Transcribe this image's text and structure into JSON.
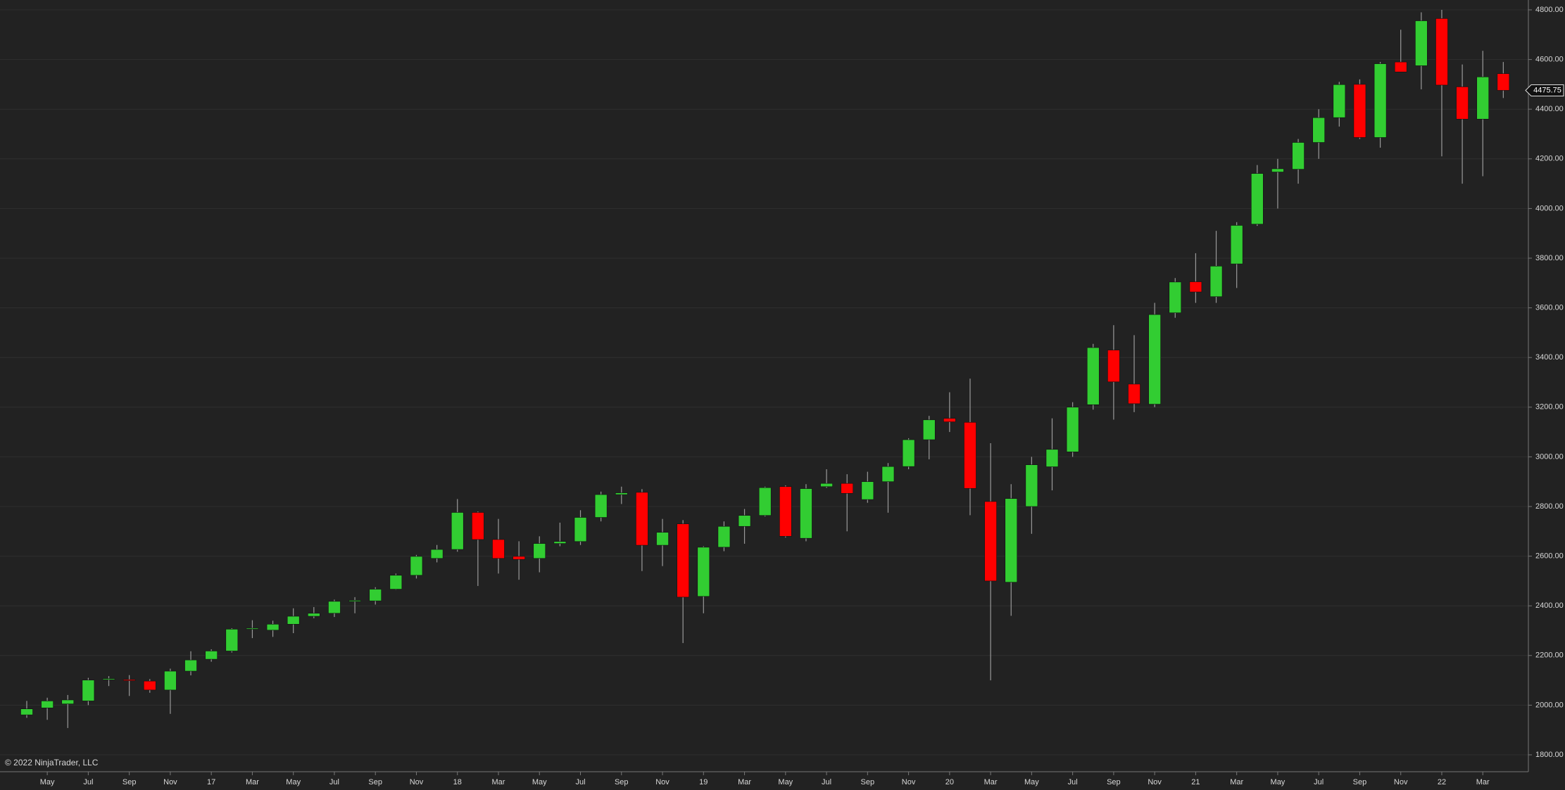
{
  "chart_data": {
    "type": "candlestick",
    "copyright": "© 2022 NinjaTrader, LLC",
    "categories": [
      null,
      "May",
      null,
      "Jul",
      null,
      "Sep",
      null,
      "Nov",
      null,
      "17",
      null,
      "Mar",
      null,
      "May",
      null,
      "Jul",
      null,
      "Sep",
      null,
      "Nov",
      null,
      "18",
      null,
      "Mar",
      null,
      "May",
      null,
      "Jul",
      null,
      "Sep",
      null,
      "Nov",
      null,
      "19",
      null,
      "Mar",
      null,
      "May",
      null,
      "Jul",
      null,
      "Sep",
      null,
      "Nov",
      null,
      "20",
      null,
      "Mar",
      null,
      "May",
      null,
      "Jul",
      null,
      "Sep",
      null,
      "Nov",
      null,
      "21",
      null,
      "Mar",
      null,
      "May",
      null,
      "Jul",
      null,
      "Sep",
      null,
      "Nov",
      null,
      "22",
      null,
      "Mar",
      null
    ],
    "open": [
      1961,
      1989,
      2005,
      2017,
      2103,
      2103,
      2097,
      2061,
      2137,
      2185,
      2218,
      2306,
      2302,
      2326,
      2358,
      2370,
      2418,
      2420,
      2467,
      2523,
      2591,
      2627,
      2776,
      2667,
      2599,
      2591,
      2651,
      2659,
      2756,
      2848,
      2857,
      2644,
      2730,
      2438,
      2636,
      2720,
      2764,
      2880,
      2672,
      2880,
      2893,
      2828,
      2900,
      2961,
      3069,
      3155,
      3139,
      2820,
      2495,
      2800,
      2960,
      3020,
      3210,
      3430,
      3293,
      3212,
      3580,
      3705,
      3645,
      3777,
      3937,
      4147,
      4158,
      4266,
      4366,
      4500,
      4286,
      4590,
      4575,
      4765,
      4490,
      4360,
      4543
    ],
    "high": [
      2017,
      2030,
      2041,
      2110,
      2117,
      2121,
      2105,
      2147,
      2217,
      2225,
      2310,
      2342,
      2340,
      2390,
      2395,
      2425,
      2435,
      2475,
      2530,
      2605,
      2645,
      2830,
      2780,
      2750,
      2660,
      2680,
      2735,
      2785,
      2860,
      2880,
      2870,
      2750,
      2745,
      2640,
      2740,
      2790,
      2880,
      2885,
      2890,
      2950,
      2930,
      2940,
      2975,
      3075,
      3165,
      3260,
      3315,
      3055,
      2890,
      3000,
      3155,
      3220,
      3455,
      3530,
      3490,
      3620,
      3720,
      3820,
      3910,
      3945,
      4175,
      4200,
      4280,
      4400,
      4510,
      4520,
      4590,
      4720,
      4790,
      4800,
      4580,
      4635,
      4590
    ],
    "low": [
      1949,
      1941,
      1908,
      2000,
      2077,
      2037,
      2050,
      1965,
      2120,
      2175,
      2212,
      2270,
      2275,
      2290,
      2350,
      2355,
      2370,
      2405,
      2465,
      2510,
      2575,
      2618,
      2480,
      2530,
      2505,
      2535,
      2640,
      2645,
      2740,
      2810,
      2540,
      2560,
      2250,
      2370,
      2620,
      2650,
      2760,
      2675,
      2660,
      2875,
      2700,
      2815,
      2775,
      2950,
      2990,
      3100,
      2765,
      2100,
      2360,
      2690,
      2865,
      3000,
      3190,
      3150,
      3180,
      3200,
      3560,
      3620,
      3620,
      3680,
      3930,
      4000,
      4100,
      4200,
      4330,
      4280,
      4245,
      4550,
      4480,
      4210,
      4100,
      4130,
      4445
    ],
    "close": [
      1985,
      2017,
      2021,
      2101,
      2107,
      2099,
      2061,
      2137,
      2182,
      2218,
      2306,
      2310,
      2326,
      2358,
      2370,
      2418,
      2422,
      2467,
      2523,
      2599,
      2627,
      2776,
      2667,
      2591,
      2587,
      2651,
      2659,
      2756,
      2848,
      2855,
      2644,
      2696,
      2435,
      2636,
      2720,
      2764,
      2876,
      2680,
      2872,
      2893,
      2853,
      2900,
      2961,
      3069,
      3149,
      3141,
      2873,
      2500,
      2832,
      2968,
      3030,
      3200,
      3440,
      3302,
      3214,
      3573,
      3704,
      3664,
      3768,
      3932,
      4141,
      4160,
      4266,
      4366,
      4499,
      4286,
      4583,
      4550,
      4756,
      4497,
      4360,
      4530,
      4475.75
    ],
    "last_price": 4475.75,
    "up_color": "#32cd32",
    "down_color": "#ff0000",
    "wick_color": "#9a9a9a",
    "ylim": [
      1800,
      4800
    ],
    "yticks": [
      {
        "value": 1800,
        "label": "1800.00"
      },
      {
        "value": 2000,
        "label": "2000.00"
      },
      {
        "value": 2200,
        "label": "2200.00"
      },
      {
        "value": 2400,
        "label": "2400.00"
      },
      {
        "value": 2600,
        "label": "2600.00"
      },
      {
        "value": 2800,
        "label": "2800.00"
      },
      {
        "value": 3000,
        "label": "3000.00"
      },
      {
        "value": 3200,
        "label": "3200.00"
      },
      {
        "value": 3400,
        "label": "3400.00"
      },
      {
        "value": 3600,
        "label": "3600.00"
      },
      {
        "value": 3800,
        "label": "3800.00"
      },
      {
        "value": 4000,
        "label": "4000.00"
      },
      {
        "value": 4200,
        "label": "4200.00"
      },
      {
        "value": 4400,
        "label": "4400.00"
      },
      {
        "value": 4600,
        "label": "4600.00"
      },
      {
        "value": 4800,
        "label": "4800.00"
      }
    ],
    "grid": true
  }
}
